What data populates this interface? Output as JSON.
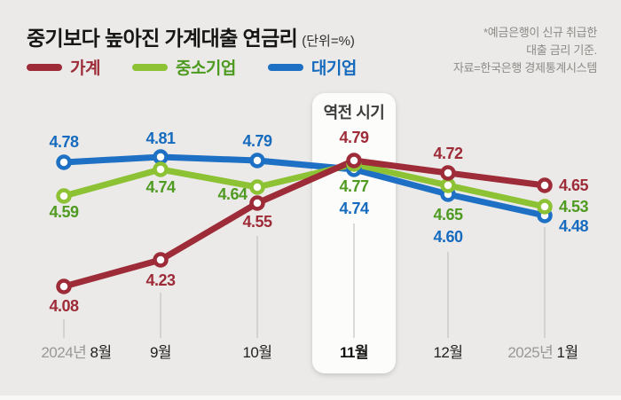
{
  "header": {
    "title": "중기보다 높아진 가계대출 연금리",
    "unit": "(단위=%)",
    "note_lines": [
      "*예금은행이 신규 취급한",
      "대출 금리 기준.",
      "자료=한국은행 경제통계시스템"
    ]
  },
  "legend": [
    {
      "label": "가계",
      "swatch_color": "#9d2c38",
      "label_color": "#9d2c38"
    },
    {
      "label": "중소기업",
      "swatch_color": "#8cc233",
      "label_color": "#4f9b22"
    },
    {
      "label": "대기업",
      "swatch_color": "#1e70c4",
      "label_color": "#176bbf"
    }
  ],
  "chart_data": {
    "type": "line",
    "categories": [
      "2024년 8월",
      "9월",
      "10월",
      "11월",
      "12월",
      "2025년 1월"
    ],
    "series": [
      {
        "name": "가계",
        "color": "#9d2c38",
        "label_color": "#9d2c38",
        "values": [
          4.08,
          4.23,
          4.55,
          4.79,
          4.72,
          4.65
        ]
      },
      {
        "name": "중소기업",
        "color": "#8cc233",
        "label_color": "#4f9b22",
        "values": [
          4.59,
          4.74,
          4.64,
          4.77,
          4.65,
          4.53
        ]
      },
      {
        "name": "대기업",
        "color": "#1e70c4",
        "label_color": "#176bbf",
        "values": [
          4.78,
          4.81,
          4.79,
          4.74,
          4.6,
          4.48
        ]
      }
    ],
    "annotation": {
      "label": "역전 시기",
      "category_index": 3
    },
    "ylim": [
      4.0,
      4.9
    ],
    "grid": false,
    "legend_position": "top-left",
    "colors": {
      "background": "#ebeae8",
      "annotation_box": "#fcfcfb",
      "annotation_text": "#3d3d3d",
      "tick_line": "#bbb9b6",
      "month_label": "#1f1f1d",
      "month_label_highlight": "#111110",
      "year_label": "#9a9896"
    }
  }
}
